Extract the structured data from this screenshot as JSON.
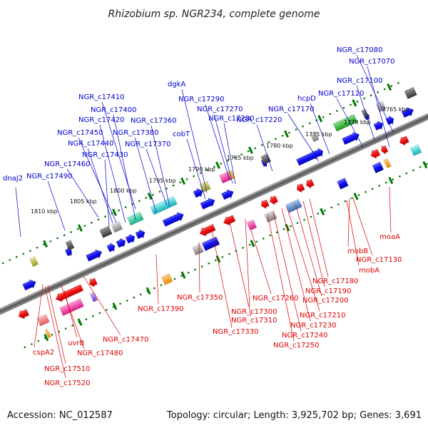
{
  "title": "Rhizobium sp. NGR234, complete genome",
  "footer": {
    "accession": "Accession: NC_012587",
    "topology": "Topology: circular; Length: 3,925,702 bp; Genes: 3,691"
  },
  "colors": {
    "forward_strand": "#0000ee",
    "reverse_strand": "#ee0000",
    "backbone": "#666666",
    "tick": "#007700",
    "forward_label": "#0000cc",
    "reverse_label": "#dd0000"
  },
  "scale_labels": [
    "1765 kbp",
    "1770 kbp",
    "1775 kbp",
    "1780 kbp",
    "1785 kbp",
    "1790 kbp",
    "1795 kbp",
    "1800 kbp",
    "1805 kbp",
    "1810 kbp"
  ],
  "forward_labels": [
    "NGR_c17080",
    "NGR_c17070",
    "NGR_c17100",
    "NGR_c17120",
    "hcpD",
    "NGR_c17170",
    "NGR_c17220",
    "NGR_c17290",
    "NGR_c17270",
    "NGR_c17280",
    "dgkA",
    "cobT",
    "NGR_c17410",
    "NGR_c17400",
    "NGR_c17420",
    "NGR_c17360",
    "NGR_c17450",
    "NGR_c17380",
    "NGR_c17440",
    "NGR_c17370",
    "NGR_c17430",
    "NGR_c17460",
    "dnaJ2",
    "NGR_c17490"
  ],
  "reverse_labels": [
    "moaA",
    "mobB",
    "NGR_c17130",
    "mobA",
    "NGR_c17180",
    "NGR_c17190",
    "NGR_c17200",
    "NGR_c17210",
    "NGR_c17230",
    "NGR_c17240",
    "NGR_c17250",
    "NGR_c17260",
    "NGR_c17300",
    "NGR_c17310",
    "NGR_c17330",
    "NGR_c17350",
    "NGR_c17390",
    "NGR_c17470",
    "uvrB",
    "NGR_c17480",
    "cspA2",
    "NGR_c17510",
    "NGR_c17520"
  ]
}
